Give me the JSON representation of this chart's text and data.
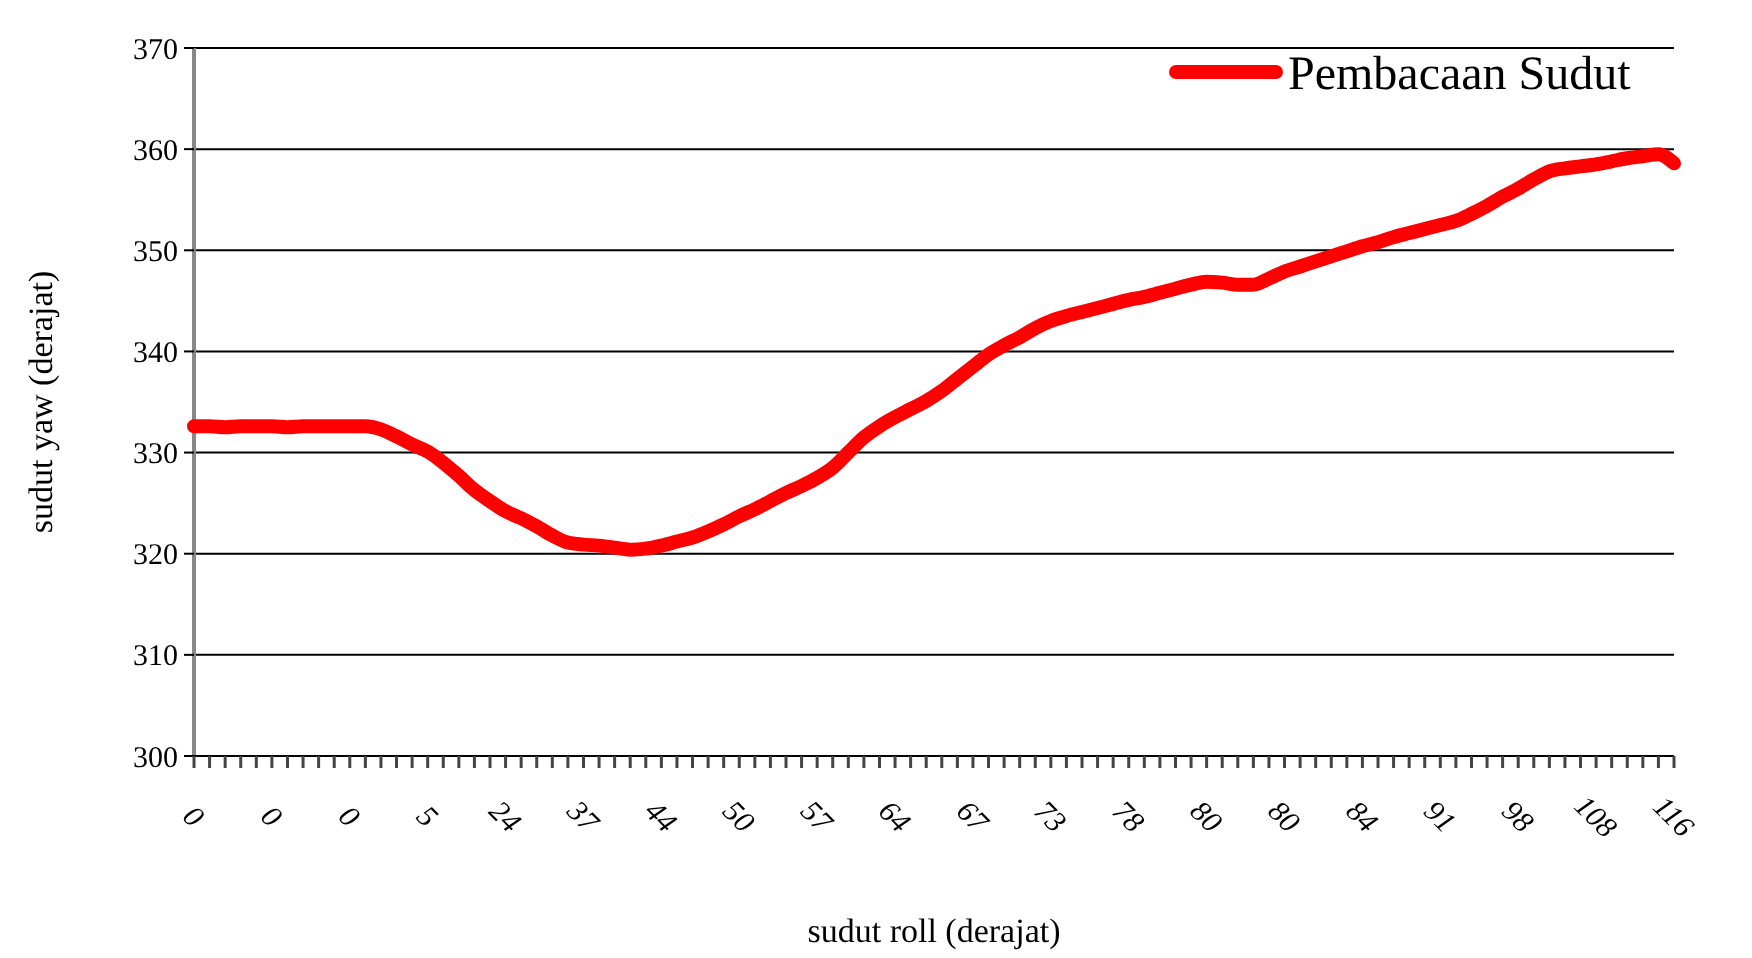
{
  "chart_data": {
    "type": "line",
    "xlabel": "sudut roll (derajat)",
    "ylabel": "sudut yaw (derajat)",
    "categories": [
      "0",
      null,
      null,
      null,
      null,
      "0",
      null,
      null,
      null,
      null,
      "0",
      null,
      null,
      null,
      null,
      "5",
      null,
      null,
      null,
      null,
      "24",
      null,
      null,
      null,
      null,
      "37",
      null,
      null,
      null,
      null,
      "44",
      null,
      null,
      null,
      null,
      "50",
      null,
      null,
      null,
      null,
      "57",
      null,
      null,
      null,
      null,
      "64",
      null,
      null,
      null,
      null,
      "67",
      null,
      null,
      null,
      null,
      "73",
      null,
      null,
      null,
      null,
      "78",
      null,
      null,
      null,
      null,
      "80",
      null,
      null,
      null,
      null,
      "80",
      null,
      null,
      null,
      null,
      "84",
      null,
      null,
      null,
      null,
      "91",
      null,
      null,
      null,
      null,
      "98",
      null,
      null,
      null,
      null,
      "108",
      null,
      null,
      null,
      null,
      "116"
    ],
    "series": [
      {
        "name": "Pembacaan Sudut",
        "color": "#ff0000",
        "values": [
          332.6,
          332.6,
          332.5,
          332.6,
          332.6,
          332.6,
          332.5,
          332.6,
          332.6,
          332.6,
          332.6,
          332.6,
          332.3,
          331.6,
          330.8,
          330.1,
          329,
          327.7,
          326.3,
          325.2,
          324.2,
          323.5,
          322.7,
          321.8,
          321.1,
          320.9,
          320.8,
          320.6,
          320.4,
          320.5,
          320.8,
          321.2,
          321.6,
          322.2,
          322.9,
          323.7,
          324.4,
          325.2,
          326,
          326.7,
          327.5,
          328.5,
          330,
          331.5,
          332.6,
          333.5,
          334.3,
          335.1,
          336.1,
          337.3,
          338.5,
          339.7,
          340.6,
          341.4,
          342.3,
          343,
          343.5,
          343.9,
          344.3,
          344.7,
          345.1,
          345.4,
          345.8,
          346.2,
          346.6,
          346.9,
          346.8,
          346.6,
          346.6,
          347.2,
          347.9,
          348.4,
          348.9,
          349.4,
          349.9,
          350.4,
          350.8,
          351.3,
          351.7,
          352.1,
          352.5,
          352.9,
          353.6,
          354.4,
          355.3,
          356.1,
          357,
          357.8,
          358.1,
          358.3,
          358.5,
          358.8,
          359.1,
          359.3,
          359.5,
          358.6
        ]
      }
    ],
    "ylim": [
      300,
      370
    ],
    "yticks": [
      300,
      310,
      320,
      330,
      340,
      350,
      360,
      370
    ],
    "grid": "y",
    "legend": "top right",
    "line_style": "solid"
  }
}
